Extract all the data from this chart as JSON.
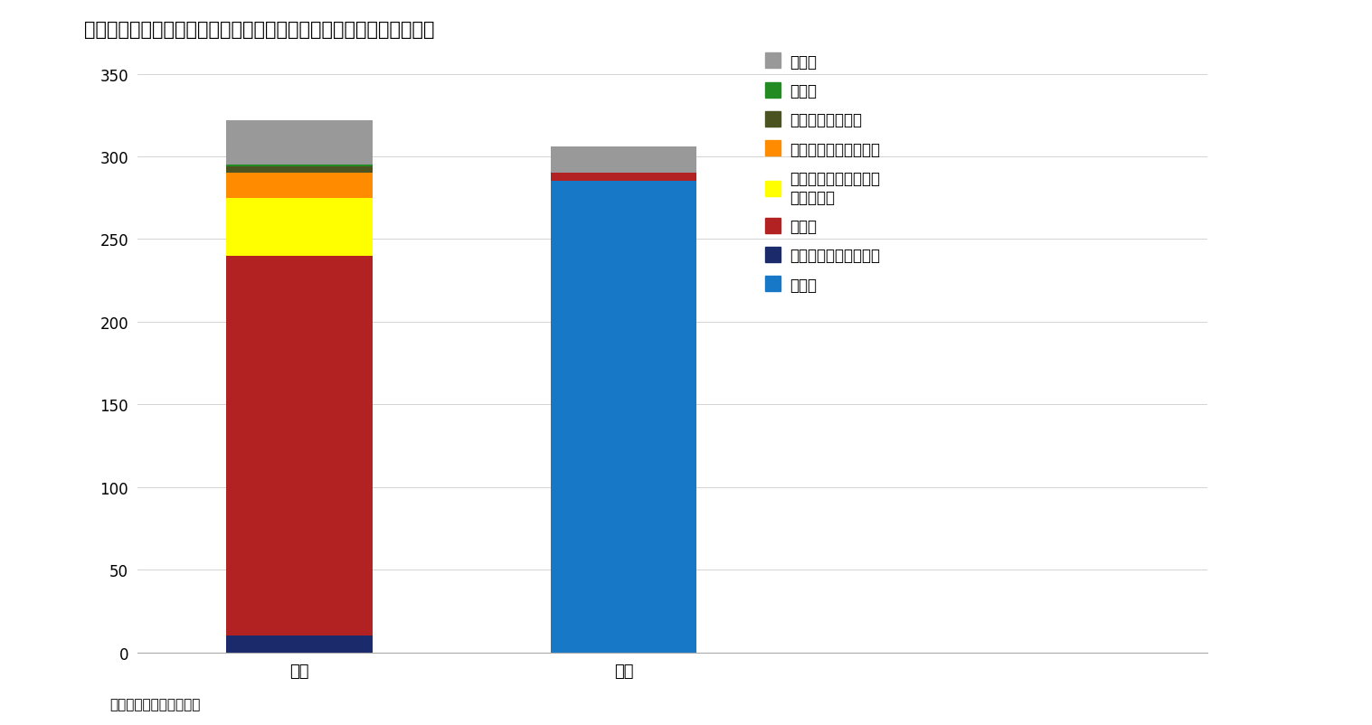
{
  "title": "離脱協定案の採決を保留する修正動議（レトウィン修正案）採決結果",
  "source": "（資料）　英国議会下院",
  "categories": [
    "賛成",
    "反対"
  ],
  "parties": [
    {
      "name": "保守党",
      "color": "#1878C8",
      "values": [
        0,
        285
      ]
    },
    {
      "name": "民主統一党（ＤＵＰ）",
      "color": "#1B2A6B",
      "values": [
        10,
        0
      ]
    },
    {
      "name": "労働党",
      "color": "#B22222",
      "values": [
        230,
        5
      ]
    },
    {
      "name": "スコットランド民族党\n（ＳＮＰ）",
      "color": "#FFFF00",
      "values": [
        35,
        0
      ]
    },
    {
      "name": "自由民主党（ＬＤＰ）",
      "color": "#FF8C00",
      "values": [
        15,
        0
      ]
    },
    {
      "name": "プライド・カムリ",
      "color": "#4B5320",
      "values": [
        4,
        0
      ]
    },
    {
      "name": "緑の党",
      "color": "#228B22",
      "values": [
        1,
        0
      ]
    },
    {
      "name": "無所属",
      "color": "#999999",
      "values": [
        27,
        16
      ]
    }
  ],
  "ylim": [
    0,
    360
  ],
  "yticks": [
    0,
    50,
    100,
    150,
    200,
    250,
    300,
    350
  ],
  "background_color": "#FFFFFF",
  "bar_width": 0.45,
  "title_fontsize": 15,
  "legend_fontsize": 12,
  "tick_fontsize": 12,
  "label_fontsize": 13
}
